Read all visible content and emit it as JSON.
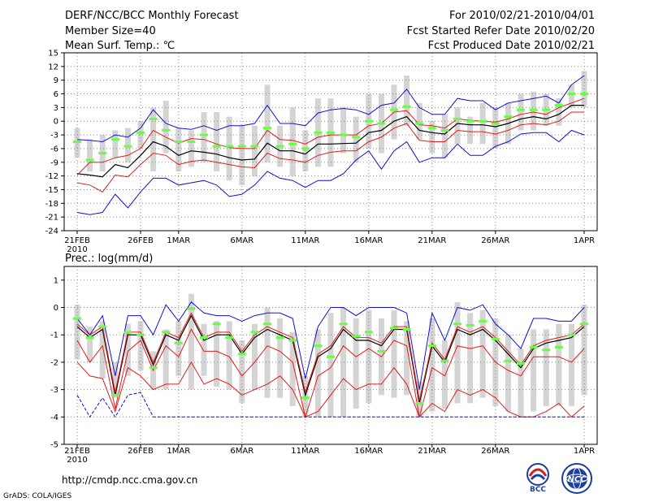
{
  "header": {
    "title": "DERF/NCC/BCC Monthly Forecast",
    "member": "Member Size=40",
    "variable": "Mean Surf. Temp.: ℃",
    "period": "For 2010/02/21-2010/04/01",
    "refer": "Fcst Started Refer Date 2010/02/20",
    "produced": "Fcst Produced Date 2010/02/21"
  },
  "footer": {
    "url": "http://cmdp.ncc.cma.gov.cn",
    "credit": "GrADS: COLA/IGES",
    "logo_left": "BCC",
    "logo_right": "NCC"
  },
  "colors": {
    "box": "#d4d4d4",
    "ensemble_mean": "#000000",
    "spread": "#e41b1b",
    "envelope": "#1010d0",
    "marker": "#66ff44",
    "grid": "#888888"
  },
  "chart_data": [
    {
      "type": "line",
      "title": "Mean Surf. Temp.: ℃",
      "ylim": [
        -24,
        15
      ],
      "y_ticks": [
        "15",
        "12",
        "9",
        "6",
        "3",
        "0",
        "-3",
        "-6",
        "-9",
        "-12",
        "-15",
        "-18",
        "-21",
        "-24"
      ],
      "x_tick_labels": [
        "21FEB",
        "26FEB",
        "1MAR",
        "6MAR",
        "11MAR",
        "16MAR",
        "21MAR",
        "26MAR",
        "1APR"
      ],
      "x_year_label": "2010",
      "series": [
        {
          "name": "ensemble_mean",
          "values": [
            -11.5,
            -11.8,
            -12.2,
            -9.5,
            -10.2,
            -7.5,
            -4.5,
            -5.5,
            -7.5,
            -6.5,
            -6.8,
            -7.2,
            -8,
            -8.5,
            -8.3,
            -4.8,
            -6.5,
            -6.5,
            -7.2,
            -5,
            -5,
            -4.9,
            -4.8,
            -2.5,
            -2,
            0,
            1,
            -2,
            -2.5,
            -2.8,
            -0.5,
            -0.8,
            -0.8,
            -1.2,
            -0.5,
            0.5,
            1,
            0.5,
            1.5,
            3.5,
            3.5
          ]
        },
        {
          "name": "spread_upper",
          "values": [
            -11.8,
            -9,
            -9,
            -8,
            -7.5,
            -6,
            -2,
            -3.5,
            -4.8,
            -3.8,
            -4,
            -5,
            -5.8,
            -6,
            -6,
            -2,
            -4,
            -4.2,
            -5,
            -3.5,
            -3,
            -3,
            -3,
            -1,
            -0.5,
            2,
            2.3,
            -0.8,
            -1,
            -1.5,
            0.5,
            0.2,
            0,
            -0.2,
            0.5,
            1.5,
            2,
            1.5,
            3,
            4,
            5
          ]
        },
        {
          "name": "spread_lower",
          "values": [
            -13.5,
            -14,
            -15.5,
            -11.8,
            -12.2,
            -9.5,
            -7,
            -7.5,
            -9.5,
            -8.8,
            -8.5,
            -9,
            -9.5,
            -10,
            -10.2,
            -7,
            -8.2,
            -8.5,
            -9,
            -7.5,
            -6.8,
            -6.5,
            -6.5,
            -4.5,
            -3.5,
            -1.5,
            -0.5,
            -4.2,
            -4.5,
            -4.5,
            -2,
            -2.3,
            -2.3,
            -2.8,
            -2,
            -0.8,
            -0.5,
            -0.8,
            0,
            2,
            2
          ]
        },
        {
          "name": "envelope_max",
          "values": [
            -4,
            -4.2,
            -4.5,
            -3,
            -3.5,
            -1.5,
            2.5,
            -0.5,
            -1.5,
            -1.8,
            -1,
            -2,
            -1,
            -1,
            -0.5,
            3.5,
            -0.5,
            -0.5,
            -1,
            1.8,
            2.5,
            2.8,
            2.5,
            1.5,
            3.5,
            4,
            7,
            3,
            1.5,
            1.5,
            5,
            4.5,
            4.5,
            2.5,
            4,
            4.5,
            5,
            5.5,
            4,
            8,
            10
          ]
        },
        {
          "name": "envelope_min",
          "values": [
            -20,
            -20.5,
            -20,
            -16,
            -19,
            -15.5,
            -12.5,
            -12.5,
            -14,
            -13.5,
            -13,
            -14,
            -16.5,
            -16,
            -14,
            -11,
            -12.5,
            -13,
            -14.5,
            -13,
            -13,
            -11.5,
            -8.5,
            -6.5,
            -10.5,
            -6.5,
            -4.5,
            -9,
            -8,
            -8,
            -5,
            -7.5,
            -7.5,
            -5.5,
            -4.5,
            -2.8,
            -2.5,
            -2.5,
            -4.5,
            -2,
            -3
          ]
        },
        {
          "name": "best_member",
          "values": [
            -4.5,
            -8.5,
            -7,
            -4,
            -5.5,
            -2.5,
            0.5,
            -2,
            -4.5,
            -4.5,
            -3,
            -5.5,
            -5.5,
            -5.5,
            -5.5,
            -1.5,
            -5.5,
            -5,
            -6,
            -2.5,
            -2.5,
            -3,
            -3.5,
            0,
            -0.5,
            2.5,
            3.2,
            -0.5,
            -1.5,
            -2,
            0.5,
            0,
            0,
            -0.5,
            1,
            2.5,
            2.5,
            2.5,
            3.5,
            6,
            6
          ]
        }
      ],
      "box_ranges": [
        [
          -8,
          -1.5
        ],
        [
          -11,
          -4
        ],
        [
          -11,
          -3
        ],
        [
          -8,
          -2
        ],
        [
          -9,
          -1.5
        ],
        [
          -6,
          0
        ],
        [
          -11,
          3
        ],
        [
          -7,
          4.5
        ],
        [
          -11,
          -1.5
        ],
        [
          -10,
          -2
        ],
        [
          -9,
          2
        ],
        [
          -11,
          2
        ],
        [
          -13,
          1
        ],
        [
          -14,
          -1
        ],
        [
          -12,
          -1
        ],
        [
          -9,
          8
        ],
        [
          -10,
          -1
        ],
        [
          -12,
          3
        ],
        [
          -11,
          -2
        ],
        [
          -10,
          5
        ],
        [
          -10,
          5
        ],
        [
          -7,
          3
        ],
        [
          -9,
          1
        ],
        [
          -6,
          6
        ],
        [
          -7,
          6
        ],
        [
          -4,
          8
        ],
        [
          -1,
          10
        ],
        [
          -4,
          4
        ],
        [
          -7,
          0
        ],
        [
          -8,
          1.5
        ],
        [
          -5,
          3
        ],
        [
          -5,
          1
        ],
        [
          -5,
          4
        ],
        [
          -6,
          3
        ],
        [
          -5,
          4
        ],
        [
          -2,
          6
        ],
        [
          -2,
          6.5
        ],
        [
          -1,
          6
        ],
        [
          -1,
          5
        ],
        [
          3,
          8
        ],
        [
          3,
          11
        ]
      ]
    },
    {
      "type": "line",
      "title": "Prec.: log(mm/d)",
      "ylim": [
        -5,
        1.5
      ],
      "y_ticks": [
        "1",
        "0",
        "-1",
        "-2",
        "-3",
        "-4",
        "-5"
      ],
      "x_tick_labels": [
        "21FEB",
        "26FEB",
        "1MAR",
        "6MAR",
        "11MAR",
        "16MAR",
        "21MAR",
        "26MAR",
        "1APR"
      ],
      "x_year_label": "2010",
      "series": [
        {
          "name": "ensemble_mean",
          "values": [
            -0.7,
            -1.1,
            -0.8,
            -3.2,
            -1,
            -1,
            -2.1,
            -1,
            -1.2,
            -0.3,
            -1.2,
            -1,
            -1,
            -1.7,
            -1.1,
            -0.8,
            -1,
            -1.2,
            -3.2,
            -1.8,
            -1.5,
            -0.8,
            -1.2,
            -1.2,
            -1.4,
            -0.8,
            -0.8,
            -3.5,
            -1.4,
            -2,
            -0.8,
            -1,
            -0.8,
            -1.2,
            -1.7,
            -2.2,
            -1.5,
            -1.3,
            -1.2,
            -1.1,
            -0.7
          ]
        },
        {
          "name": "spread_upper",
          "values": [
            -0.6,
            -1,
            -0.7,
            -3.1,
            -0.9,
            -0.9,
            -2,
            -0.9,
            -1.1,
            -0.2,
            -1.1,
            -0.9,
            -0.9,
            -1.6,
            -1,
            -0.7,
            -0.9,
            -1.1,
            -3.1,
            -1.7,
            -1.4,
            -0.7,
            -1.1,
            -1.1,
            -1.3,
            -0.7,
            -0.7,
            -3.4,
            -1.3,
            -1.9,
            -0.7,
            -0.9,
            -0.7,
            -1.1,
            -1.6,
            -2.1,
            -1.4,
            -1.2,
            -1.1,
            -1,
            -0.6
          ]
        },
        {
          "name": "spread_lower",
          "values": [
            -1.2,
            -2,
            -1.4,
            -3.7,
            -1.6,
            -1.2,
            -2.3,
            -1.4,
            -1.8,
            -0.8,
            -1.6,
            -1.6,
            -1.8,
            -2.5,
            -2,
            -1.4,
            -1.6,
            -2,
            -4,
            -2.5,
            -2.2,
            -1.4,
            -1.8,
            -1.5,
            -1.8,
            -1.2,
            -1.4,
            -4,
            -2.2,
            -2.5,
            -1.4,
            -1.5,
            -1.4,
            -2,
            -2.3,
            -2.5,
            -1.8,
            -1.8,
            -1.8,
            -2,
            -1.5
          ]
        },
        {
          "name": "spread_lower2",
          "values": [
            -2,
            -2.5,
            -2.6,
            -3.8,
            -2.2,
            -2.5,
            -3,
            -2.8,
            -2.8,
            -2,
            -2.8,
            -2.6,
            -2.8,
            -3.2,
            -3,
            -2.8,
            -2.5,
            -3,
            -4,
            -3.8,
            -3.2,
            -2.6,
            -3,
            -2.8,
            -2.8,
            -2.2,
            -2.8,
            -4,
            -3.5,
            -3.8,
            -3,
            -3.2,
            -3,
            -3.3,
            -3.8,
            -4,
            -4,
            -3.8,
            -3.5,
            -4,
            -3.6
          ]
        },
        {
          "name": "envelope_max",
          "values": [
            -0.4,
            -1,
            -0.3,
            -2.5,
            -0.3,
            -0.3,
            -1,
            0.1,
            -0.5,
            0.2,
            -0.2,
            -0.3,
            -0.3,
            -0.5,
            -0.3,
            -0.2,
            -0.2,
            -0.4,
            -2.6,
            -0.7,
            0,
            0,
            -0.3,
            0,
            0,
            0,
            -0.2,
            -3,
            -0.2,
            -1.2,
            0,
            -0.1,
            0.1,
            -0.6,
            -1,
            -1.5,
            -0.4,
            -0.4,
            -0.5,
            -0.5,
            0
          ]
        },
        {
          "name": "envelope_min",
          "values": [
            -3.2,
            -4,
            -3.3,
            -4,
            -3.2,
            -3.1,
            -4,
            -4,
            -4,
            -4,
            -4,
            -4,
            -4,
            -4,
            -4,
            -4,
            -4,
            -4,
            -4,
            -4,
            -4,
            -4,
            -4,
            -4,
            -4,
            -4,
            -4,
            -4,
            -4,
            -4,
            -4,
            -4,
            -4,
            -4,
            -4,
            -4,
            -4,
            -4,
            -4,
            -4,
            -4
          ]
        },
        {
          "name": "best_member",
          "values": [
            -0.4,
            -1.1,
            -0.7,
            -3.2,
            -0.9,
            -1,
            -2.2,
            -0.9,
            -1.3,
            -0.05,
            -1.1,
            -0.6,
            -1.1,
            -1.7,
            -0.9,
            -0.6,
            -1.1,
            -1.2,
            -3.3,
            -1.4,
            -1.8,
            -0.6,
            -1.05,
            -0.9,
            -1.6,
            -0.75,
            -0.8,
            -3.5,
            -1.4,
            -1.95,
            -0.6,
            -0.65,
            -0.5,
            -1.15,
            -1.95,
            -2.05,
            -1.45,
            -1.55,
            -1.45,
            -1,
            -0.6
          ]
        }
      ],
      "box_ranges": [
        [
          -1.9,
          0.1
        ],
        [
          -2,
          -0.7
        ],
        [
          -2.6,
          -0.5
        ],
        [
          -3.3,
          -2
        ],
        [
          -2.5,
          -0.6
        ],
        [
          -2.3,
          -0.5
        ],
        [
          -3,
          -1.6
        ],
        [
          -3,
          -0.8
        ],
        [
          -2.5,
          -0.5
        ],
        [
          -3,
          0.5
        ],
        [
          -2.5,
          -0.6
        ],
        [
          -2.9,
          -0.5
        ],
        [
          -3,
          -0.5
        ],
        [
          -3.5,
          -1.2
        ],
        [
          -3,
          -0.6
        ],
        [
          -3.3,
          0
        ],
        [
          -3.3,
          -0.4
        ],
        [
          -3.6,
          -0.9
        ],
        [
          -4,
          -2.5
        ],
        [
          -4,
          -0.8
        ],
        [
          -4,
          -0.2
        ],
        [
          -4,
          0
        ],
        [
          -3.7,
          -0.4
        ],
        [
          -3.5,
          -0.1
        ],
        [
          -3.2,
          -0.4
        ],
        [
          -3.3,
          -0.1
        ],
        [
          -3.2,
          -0.5
        ],
        [
          -4,
          -2.7
        ],
        [
          -3.8,
          -0.4
        ],
        [
          -3.7,
          -1.2
        ],
        [
          -3.5,
          0.2
        ],
        [
          -3.5,
          -0.2
        ],
        [
          -3.3,
          -0.1
        ],
        [
          -3.6,
          -0.4
        ],
        [
          -3.8,
          -1
        ],
        [
          -4,
          -1.5
        ],
        [
          -3.8,
          -0.8
        ],
        [
          -3.6,
          -0.8
        ],
        [
          -3.6,
          -0.6
        ],
        [
          -3.6,
          -0.6
        ],
        [
          -3.2,
          0.1
        ]
      ]
    }
  ]
}
